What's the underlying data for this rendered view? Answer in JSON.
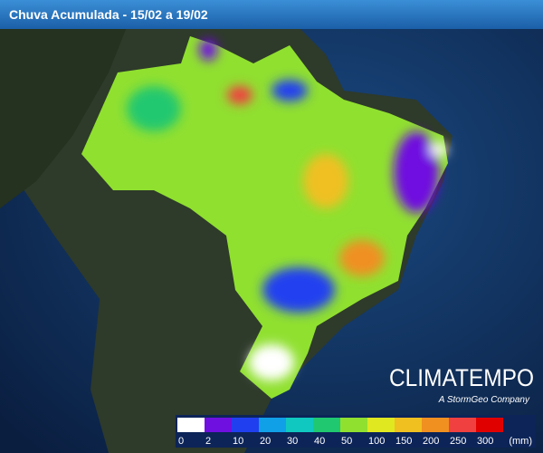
{
  "header": {
    "title": "Chuva Acumulada - 15/02 a 19/02"
  },
  "legend": {
    "items": [
      {
        "label": 0,
        "color": "#ffffff"
      },
      {
        "label": 2,
        "color": "#7010e0"
      },
      {
        "label": 10,
        "color": "#2040f0"
      },
      {
        "label": 20,
        "color": "#10a0e8"
      },
      {
        "label": 30,
        "color": "#10c8c0"
      },
      {
        "label": 40,
        "color": "#20c870"
      },
      {
        "label": 50,
        "color": "#90e030"
      },
      {
        "label": 100,
        "color": "#e0e820"
      },
      {
        "label": 150,
        "color": "#f0c020"
      },
      {
        "label": 200,
        "color": "#f09020"
      },
      {
        "label": 250,
        "color": "#f04040"
      },
      {
        "label": 300,
        "color": "#e00000"
      }
    ],
    "unit": "(mm)"
  },
  "brand": {
    "name": "CLIMATEMPO",
    "tagline": "A StormGeo Company"
  }
}
